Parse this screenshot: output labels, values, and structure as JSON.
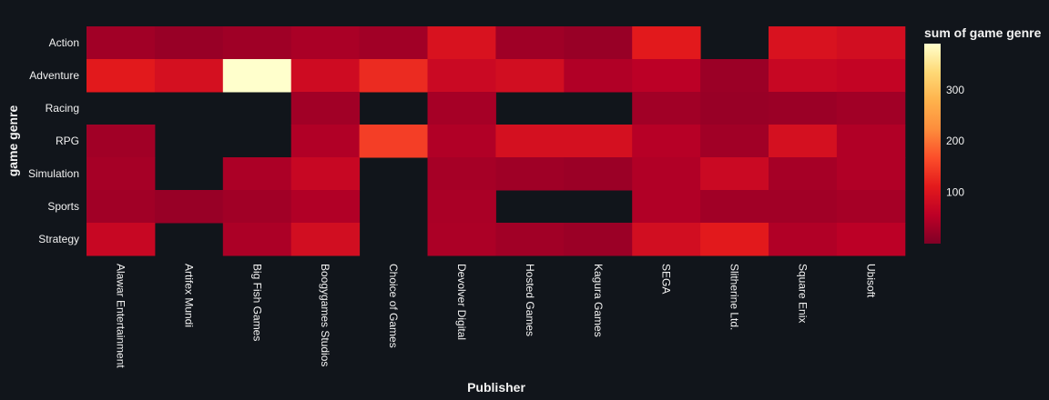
{
  "chart_data": {
    "type": "heatmap",
    "title": "",
    "xlabel": "Publisher",
    "ylabel": "game genre",
    "x": [
      "Alawar Entertainment",
      "Artifex Mundi",
      "Big Fish Games",
      "Boogygames Studios",
      "Choice of Games",
      "Devolver Digital",
      "Hosted Games",
      "Kagura Games",
      "SEGA",
      "Slitherine Ltd.",
      "Square Enix",
      "Ubisoft"
    ],
    "y": [
      "Action",
      "Adventure",
      "Racing",
      "RPG",
      "Simulation",
      "Sports",
      "Strategy"
    ],
    "z": [
      [
        30,
        22,
        28,
        38,
        30,
        95,
        28,
        22,
        110,
        null,
        95,
        85
      ],
      [
        110,
        90,
        390,
        80,
        130,
        75,
        85,
        45,
        55,
        25,
        70,
        65
      ],
      [
        null,
        null,
        null,
        30,
        null,
        35,
        null,
        null,
        30,
        22,
        25,
        30
      ],
      [
        30,
        null,
        null,
        45,
        150,
        45,
        90,
        90,
        50,
        30,
        90,
        45
      ],
      [
        35,
        null,
        40,
        70,
        null,
        35,
        28,
        25,
        45,
        75,
        35,
        45
      ],
      [
        30,
        22,
        30,
        45,
        null,
        38,
        null,
        null,
        45,
        30,
        30,
        35
      ],
      [
        70,
        null,
        40,
        85,
        null,
        40,
        30,
        25,
        85,
        110,
        45,
        55
      ]
    ],
    "colorbar": {
      "title": "sum of game genre",
      "range": [
        0,
        390
      ],
      "tickvals": [
        100,
        200,
        300
      ],
      "ticktext": [
        "100",
        "200",
        "300"
      ],
      "colorscale": [
        "#800026",
        "#bd0026",
        "#e31a1c",
        "#fc4e2a",
        "#fd8d3c",
        "#feb24c",
        "#fed976",
        "#ffffcc"
      ]
    },
    "grid": false,
    "background": "#11151b"
  }
}
